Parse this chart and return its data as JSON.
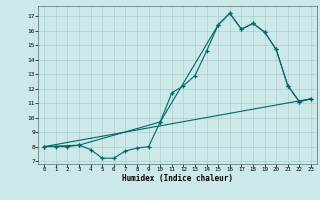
{
  "background_color": "#cce8e8",
  "grid_color": "#aacfcf",
  "line_color": "#006868",
  "xlim": [
    -0.5,
    23.5
  ],
  "ylim": [
    6.8,
    17.7
  ],
  "yticks": [
    7,
    8,
    9,
    10,
    11,
    12,
    13,
    14,
    15,
    16,
    17
  ],
  "xticks": [
    0,
    1,
    2,
    3,
    4,
    5,
    6,
    7,
    8,
    9,
    10,
    11,
    12,
    13,
    14,
    15,
    16,
    17,
    18,
    19,
    20,
    21,
    22,
    23
  ],
  "xlabel": "Humidex (Indice chaleur)",
  "line1_x": [
    0,
    1,
    2,
    3,
    4,
    5,
    6,
    7,
    8,
    9,
    10,
    11,
    12,
    13,
    14,
    15,
    16,
    17,
    18,
    19,
    20,
    21,
    22,
    23
  ],
  "line1_y": [
    8.0,
    8.0,
    8.0,
    8.1,
    7.8,
    7.2,
    7.2,
    7.7,
    7.9,
    8.0,
    9.7,
    11.7,
    12.2,
    12.9,
    14.6,
    16.4,
    17.2,
    16.1,
    16.5,
    15.9,
    14.7,
    12.2,
    11.1,
    11.3
  ],
  "line2_x": [
    0,
    3,
    10,
    15,
    16,
    17,
    18,
    19,
    20,
    21,
    22,
    23
  ],
  "line2_y": [
    8.0,
    8.1,
    9.7,
    16.4,
    17.2,
    16.1,
    16.5,
    15.9,
    14.7,
    12.2,
    11.1,
    11.3
  ],
  "line3_x": [
    0,
    23
  ],
  "line3_y": [
    8.0,
    11.3
  ]
}
